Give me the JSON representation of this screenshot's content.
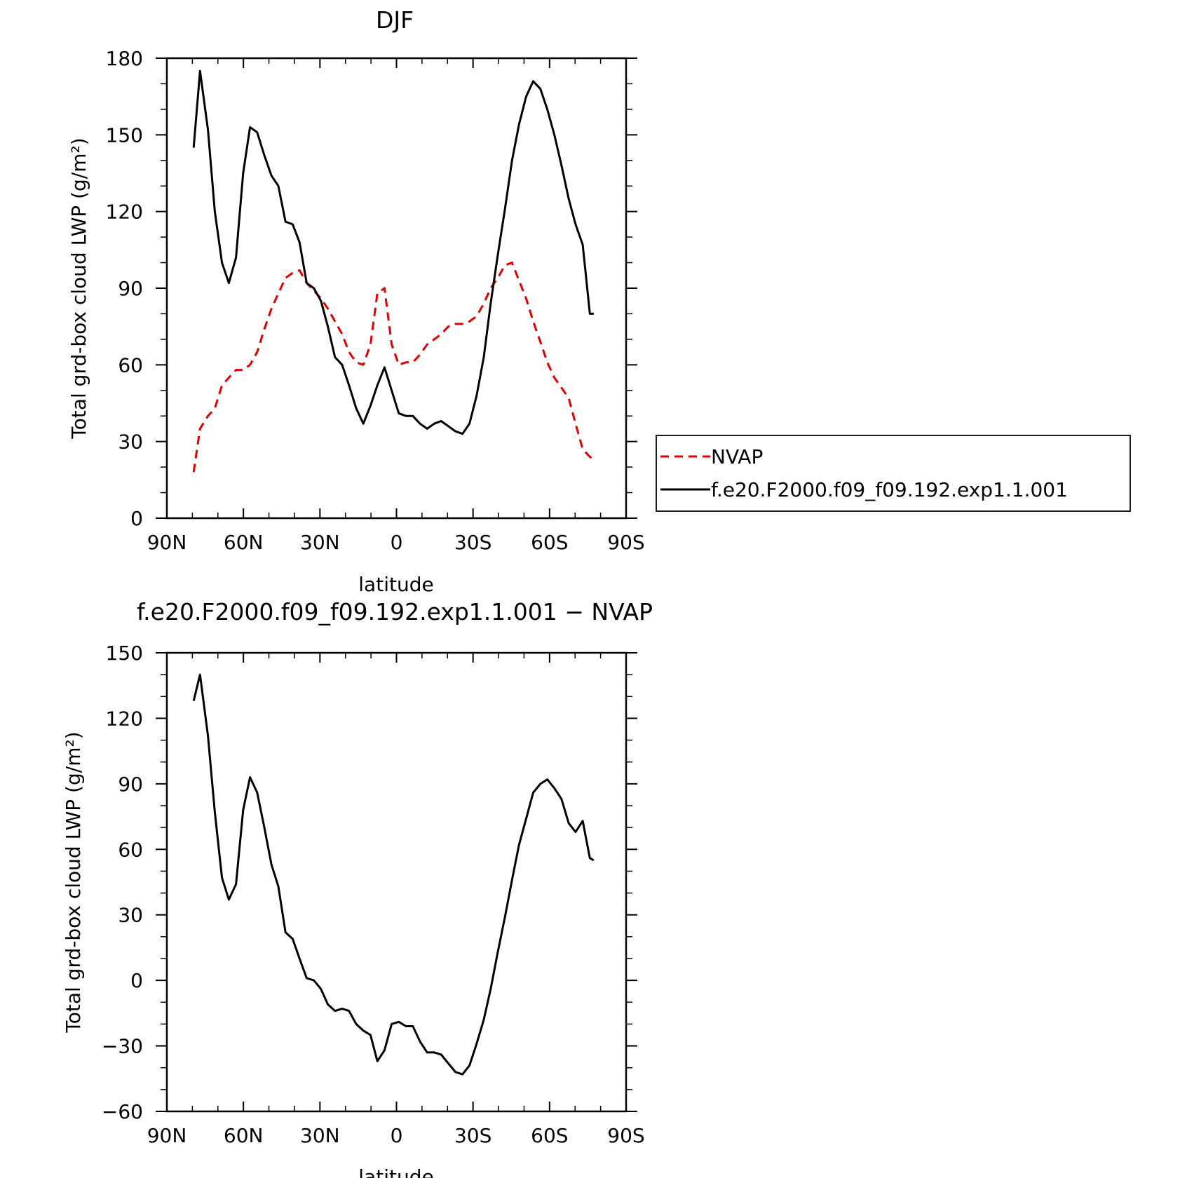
{
  "chart_data": [
    {
      "type": "line",
      "title": "DJF",
      "xlabel": "latitude",
      "ylabel": "Total grd-box cloud LWP (g/m²)",
      "xlim": [
        90,
        -90
      ],
      "ylim": [
        0,
        180
      ],
      "x_ticks": [
        90,
        60,
        30,
        0,
        -30,
        -60,
        -90
      ],
      "x_tick_labels": [
        "90N",
        "60N",
        "30N",
        "0",
        "30S",
        "60S",
        "90S"
      ],
      "y_ticks": [
        0,
        30,
        60,
        90,
        120,
        150,
        180
      ],
      "y_tick_labels": [
        "0",
        "30",
        "60",
        "90",
        "120",
        "150",
        "180"
      ],
      "legend_position": "right-middle",
      "series": [
        {
          "name": "NVAP",
          "color": "#e00000",
          "dash": "dashed",
          "x": [
            79.5,
            77,
            73.9,
            71.2,
            68.4,
            65.7,
            62.9,
            60.1,
            57.4,
            54.6,
            51.8,
            49,
            46.3,
            43.5,
            40.7,
            38,
            35.2,
            32.4,
            29.6,
            26.9,
            24.1,
            21.3,
            18.6,
            15.8,
            13,
            10.2,
            7.5,
            4.7,
            1.9,
            -0.9,
            -3.7,
            -6.4,
            -9.2,
            -12,
            -14.8,
            -17.5,
            -20.3,
            -23.1,
            -25.9,
            -28.6,
            -31.4,
            -34.2,
            -36.9,
            -39.7,
            -42.5,
            -45.3,
            -48,
            -50.8,
            -53.6,
            -56.4,
            -59.1,
            -61.9,
            -64.7,
            -67.5,
            -70.2,
            -73,
            -75.8,
            -77.3
          ],
          "y": [
            18,
            35,
            40,
            43,
            52,
            55,
            58,
            58,
            60,
            65,
            74,
            82,
            88,
            94,
            96,
            97,
            92,
            89,
            86,
            82,
            77,
            72,
            65,
            61,
            60,
            68,
            88,
            90,
            68,
            60,
            61,
            61,
            64,
            68,
            70,
            72,
            75,
            76,
            76,
            77,
            79,
            84,
            90,
            94,
            99,
            100,
            93,
            86,
            77,
            69,
            61,
            55,
            51,
            47,
            37,
            27,
            24,
            23
          ]
        },
        {
          "name": "f.e20.F2000.f09_f09.192.exp1.1.001",
          "color": "#000000",
          "dash": "solid",
          "x": [
            79.5,
            77,
            73.9,
            71.2,
            68.4,
            65.7,
            62.9,
            60.1,
            57.4,
            54.6,
            51.8,
            49,
            46.3,
            43.5,
            40.7,
            38,
            35.2,
            32.4,
            29.6,
            26.9,
            24.1,
            21.3,
            18.6,
            15.8,
            13,
            10.2,
            7.5,
            4.7,
            1.9,
            -0.9,
            -3.7,
            -6.4,
            -9.2,
            -12,
            -14.8,
            -17.5,
            -20.3,
            -23.1,
            -25.9,
            -28.6,
            -31.4,
            -34.2,
            -36.9,
            -39.7,
            -42.5,
            -45.3,
            -48,
            -50.8,
            -53.6,
            -56.4,
            -59.1,
            -61.9,
            -64.7,
            -67.5,
            -70.2,
            -73,
            -75.8,
            -77.3
          ],
          "y": [
            145,
            175,
            152,
            120,
            100,
            92,
            102,
            135,
            153,
            151,
            142,
            134,
            130,
            116,
            115,
            108,
            92,
            90,
            85,
            75,
            63,
            60,
            52,
            43,
            37,
            44,
            52,
            59,
            50,
            41,
            40,
            40,
            37,
            35,
            37,
            38,
            36,
            34,
            33,
            37,
            48,
            63,
            84,
            103,
            121,
            140,
            154,
            165,
            171,
            168,
            160,
            150,
            138,
            125,
            115,
            107,
            80,
            80
          ]
        }
      ]
    },
    {
      "type": "line",
      "title": "f.e20.F2000.f09_f09.192.exp1.1.001 − NVAP",
      "xlabel": "latitude",
      "ylabel": "Total grd-box cloud LWP (g/m²)",
      "xlim": [
        90,
        -90
      ],
      "ylim": [
        -60,
        150
      ],
      "x_ticks": [
        90,
        60,
        30,
        0,
        -30,
        -60,
        -90
      ],
      "x_tick_labels": [
        "90N",
        "60N",
        "30N",
        "0",
        "30S",
        "60S",
        "90S"
      ],
      "y_ticks": [
        -60,
        -30,
        0,
        30,
        60,
        90,
        120,
        150
      ],
      "y_tick_labels": [
        "−60",
        "−30",
        "0",
        "30",
        "60",
        "90",
        "120",
        "150"
      ],
      "series": [
        {
          "color": "#000000",
          "dash": "solid",
          "x": [
            79.5,
            77,
            73.9,
            71.2,
            68.4,
            65.7,
            62.9,
            60.1,
            57.4,
            54.6,
            51.8,
            49,
            46.3,
            43.5,
            40.7,
            38,
            35.2,
            32.4,
            29.6,
            26.9,
            24.1,
            21.3,
            18.6,
            15.8,
            13,
            10.2,
            7.5,
            4.7,
            1.9,
            -0.9,
            -3.7,
            -6.4,
            -9.2,
            -12,
            -14.8,
            -17.5,
            -20.3,
            -23.1,
            -25.9,
            -28.6,
            -31.4,
            -34.2,
            -36.9,
            -39.7,
            -42.5,
            -45.3,
            -48,
            -50.8,
            -53.6,
            -56.4,
            -59.1,
            -61.9,
            -64.7,
            -67.5,
            -70.2,
            -73,
            -75.8,
            -77.3
          ],
          "y": [
            128,
            140,
            112,
            77,
            47,
            37,
            44,
            78,
            93,
            86,
            70,
            53,
            43,
            22,
            19,
            10,
            1,
            0,
            -4,
            -11,
            -14,
            -13,
            -14,
            -20,
            -23,
            -25,
            -37,
            -32,
            -20,
            -19,
            -21,
            -21,
            -28,
            -33,
            -33,
            -34,
            -38,
            -42,
            -43,
            -39,
            -29,
            -18,
            -4,
            13,
            29,
            46,
            62,
            74,
            86,
            90,
            92,
            88,
            83,
            72,
            68,
            73,
            56,
            55
          ]
        }
      ]
    }
  ]
}
